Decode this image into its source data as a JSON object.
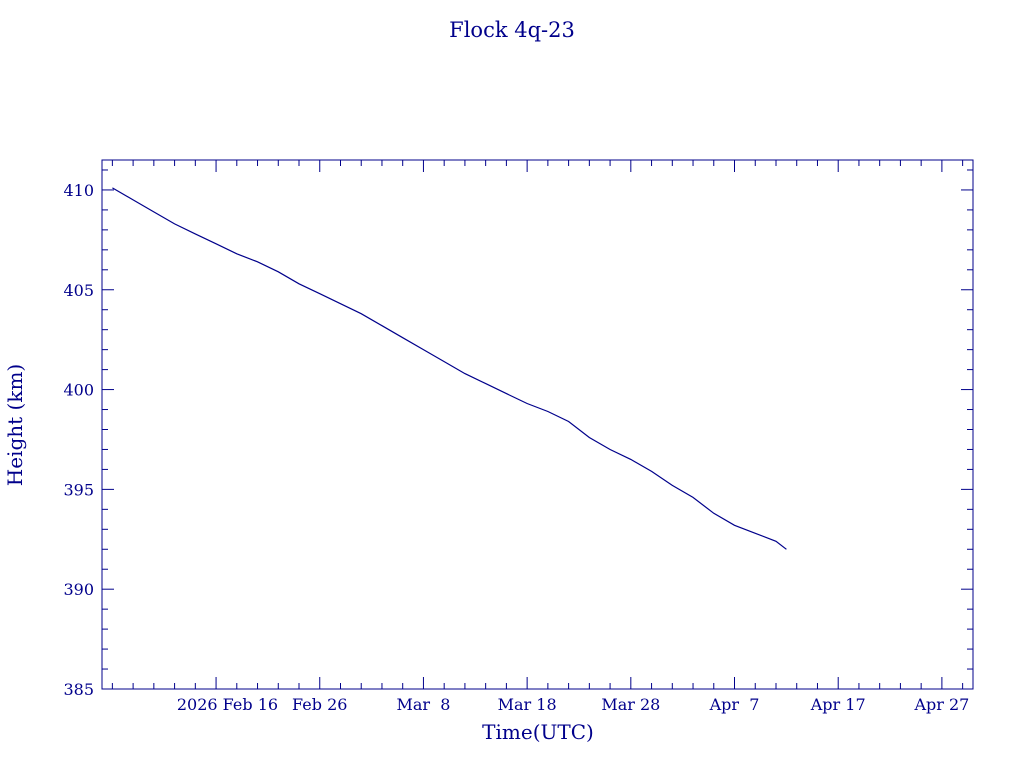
{
  "chart_data": {
    "type": "line",
    "title": "Flock 4q-23",
    "xlabel": "Time(UTC)",
    "ylabel": "Height (km)",
    "ylim": [
      385,
      411.5
    ],
    "xlim": [
      "2026-02-05",
      "2026-04-30"
    ],
    "grid": false,
    "color": "#00008b",
    "y_ticks": [
      385,
      390,
      395,
      400,
      405,
      410
    ],
    "x_ticks": [
      {
        "date": "2026-02-16",
        "label": "2026 Feb 16"
      },
      {
        "date": "2026-02-26",
        "label": "Feb 26"
      },
      {
        "date": "2026-03-08",
        "label": "Mar  8"
      },
      {
        "date": "2026-03-18",
        "label": "Mar 18"
      },
      {
        "date": "2026-03-28",
        "label": "Mar 28"
      },
      {
        "date": "2026-04-07",
        "label": "Apr  7"
      },
      {
        "date": "2026-04-17",
        "label": "Apr 17"
      },
      {
        "date": "2026-04-27",
        "label": "Apr 27"
      }
    ],
    "series": [
      {
        "x": [
          "2026-02-06",
          "2026-02-08",
          "2026-02-10",
          "2026-02-12",
          "2026-02-14",
          "2026-02-16",
          "2026-02-18",
          "2026-02-20",
          "2026-02-22",
          "2026-02-24",
          "2026-02-26",
          "2026-02-28",
          "2026-03-02",
          "2026-03-04",
          "2026-03-06",
          "2026-03-08",
          "2026-03-10",
          "2026-03-12",
          "2026-03-14",
          "2026-03-16",
          "2026-03-18",
          "2026-03-20",
          "2026-03-22",
          "2026-03-24",
          "2026-03-26",
          "2026-03-28",
          "2026-03-30",
          "2026-04-01",
          "2026-04-03",
          "2026-04-05",
          "2026-04-07",
          "2026-04-09",
          "2026-04-11",
          "2026-04-12"
        ],
        "y": [
          410.1,
          409.5,
          408.9,
          408.3,
          407.8,
          407.3,
          406.8,
          406.4,
          405.9,
          405.3,
          404.8,
          404.3,
          403.8,
          403.2,
          402.6,
          402.0,
          401.4,
          400.8,
          400.3,
          399.8,
          399.3,
          398.9,
          398.4,
          397.6,
          397.0,
          396.5,
          395.9,
          395.2,
          394.6,
          393.8,
          393.2,
          392.8,
          392.4,
          392.0
        ]
      }
    ]
  }
}
